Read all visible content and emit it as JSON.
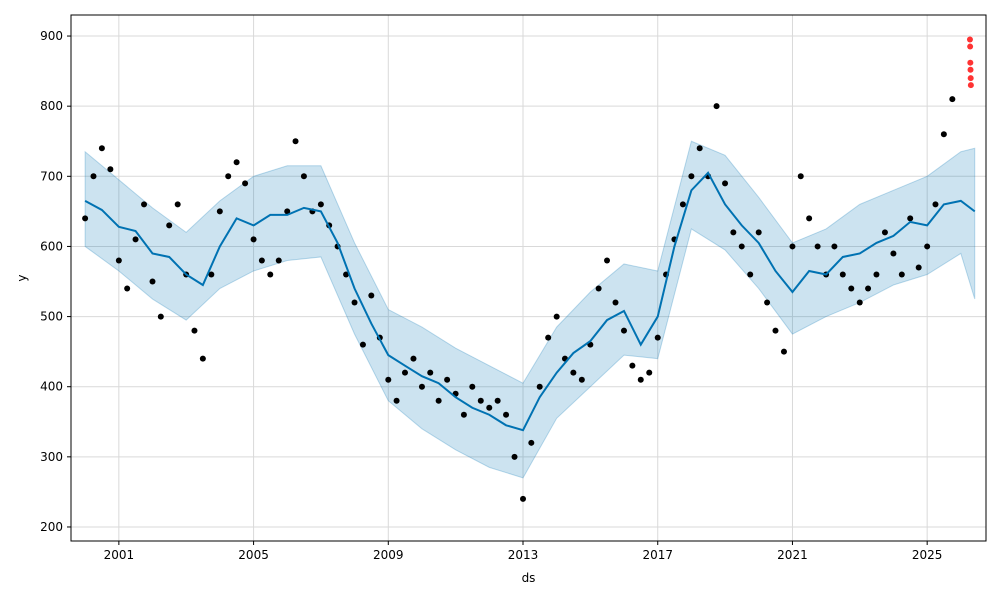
{
  "chart_data": {
    "type": "scatter",
    "xlabel": "ds",
    "ylabel": "y",
    "xlim": [
      "1999-08-01",
      "2026-10-01"
    ],
    "ylim": [
      180,
      930
    ],
    "grid": true,
    "x_ticks": [
      {
        "label": "2001",
        "date": "2001-01-01"
      },
      {
        "label": "2005",
        "date": "2005-01-01"
      },
      {
        "label": "2009",
        "date": "2009-01-01"
      },
      {
        "label": "2013",
        "date": "2013-01-01"
      },
      {
        "label": "2017",
        "date": "2017-01-01"
      },
      {
        "label": "2021",
        "date": "2021-01-01"
      },
      {
        "label": "2025",
        "date": "2025-01-01"
      }
    ],
    "y_ticks": [
      200,
      300,
      400,
      500,
      600,
      700,
      800,
      900
    ],
    "colors": {
      "observed": "#000000",
      "anomaly": "#ff0000",
      "trend": "#0072b2",
      "band": "#0072b2",
      "grid": "#d9d9d9"
    },
    "series": [
      {
        "role": "forecast",
        "style": "line",
        "points": [
          [
            "2000-01-01",
            665
          ],
          [
            "2000-07-01",
            652
          ],
          [
            "2001-01-01",
            628
          ],
          [
            "2001-07-01",
            622
          ],
          [
            "2002-01-01",
            590
          ],
          [
            "2002-07-01",
            585
          ],
          [
            "2003-01-01",
            560
          ],
          [
            "2003-07-01",
            545
          ],
          [
            "2004-01-01",
            600
          ],
          [
            "2004-07-01",
            640
          ],
          [
            "2005-01-01",
            630
          ],
          [
            "2005-07-01",
            645
          ],
          [
            "2006-01-01",
            645
          ],
          [
            "2006-07-01",
            655
          ],
          [
            "2007-01-01",
            650
          ],
          [
            "2007-07-01",
            605
          ],
          [
            "2008-01-01",
            540
          ],
          [
            "2008-07-01",
            490
          ],
          [
            "2009-01-01",
            445
          ],
          [
            "2009-07-01",
            430
          ],
          [
            "2010-01-01",
            415
          ],
          [
            "2010-07-01",
            405
          ],
          [
            "2011-01-01",
            385
          ],
          [
            "2011-07-01",
            370
          ],
          [
            "2012-01-01",
            360
          ],
          [
            "2012-07-01",
            345
          ],
          [
            "2013-01-01",
            338
          ],
          [
            "2013-07-01",
            385
          ],
          [
            "2014-01-01",
            420
          ],
          [
            "2014-07-01",
            448
          ],
          [
            "2015-01-01",
            465
          ],
          [
            "2015-07-01",
            495
          ],
          [
            "2016-01-01",
            508
          ],
          [
            "2016-07-01",
            460
          ],
          [
            "2017-01-01",
            500
          ],
          [
            "2017-07-01",
            600
          ],
          [
            "2018-01-01",
            680
          ],
          [
            "2018-07-01",
            705
          ],
          [
            "2019-01-01",
            660
          ],
          [
            "2019-07-01",
            630
          ],
          [
            "2020-01-01",
            605
          ],
          [
            "2020-07-01",
            565
          ],
          [
            "2021-01-01",
            535
          ],
          [
            "2021-07-01",
            565
          ],
          [
            "2022-01-01",
            560
          ],
          [
            "2022-07-01",
            585
          ],
          [
            "2023-01-01",
            590
          ],
          [
            "2023-07-01",
            605
          ],
          [
            "2024-01-01",
            615
          ],
          [
            "2024-07-01",
            635
          ],
          [
            "2025-01-01",
            630
          ],
          [
            "2025-07-01",
            660
          ],
          [
            "2026-01-01",
            665
          ],
          [
            "2026-06-01",
            650
          ]
        ]
      },
      {
        "role": "uncertainty",
        "style": "band",
        "lower": [
          [
            "2000-01-01",
            600
          ],
          [
            "2001-01-01",
            565
          ],
          [
            "2002-01-01",
            525
          ],
          [
            "2003-01-01",
            495
          ],
          [
            "2004-01-01",
            540
          ],
          [
            "2005-01-01",
            565
          ],
          [
            "2006-01-01",
            580
          ],
          [
            "2007-01-01",
            585
          ],
          [
            "2008-01-01",
            475
          ],
          [
            "2009-01-01",
            380
          ],
          [
            "2010-01-01",
            340
          ],
          [
            "2011-01-01",
            310
          ],
          [
            "2012-01-01",
            285
          ],
          [
            "2013-01-01",
            270
          ],
          [
            "2014-01-01",
            355
          ],
          [
            "2015-01-01",
            400
          ],
          [
            "2016-01-01",
            445
          ],
          [
            "2017-01-01",
            440
          ],
          [
            "2018-01-01",
            625
          ],
          [
            "2019-01-01",
            595
          ],
          [
            "2020-01-01",
            540
          ],
          [
            "2021-01-01",
            475
          ],
          [
            "2022-01-01",
            500
          ],
          [
            "2023-01-01",
            520
          ],
          [
            "2024-01-01",
            545
          ],
          [
            "2025-01-01",
            560
          ],
          [
            "2026-01-01",
            590
          ],
          [
            "2026-06-01",
            525
          ]
        ],
        "upper": [
          [
            "2000-01-01",
            735
          ],
          [
            "2001-01-01",
            695
          ],
          [
            "2002-01-01",
            655
          ],
          [
            "2003-01-01",
            620
          ],
          [
            "2004-01-01",
            665
          ],
          [
            "2005-01-01",
            700
          ],
          [
            "2006-01-01",
            715
          ],
          [
            "2007-01-01",
            715
          ],
          [
            "2008-01-01",
            605
          ],
          [
            "2009-01-01",
            510
          ],
          [
            "2010-01-01",
            485
          ],
          [
            "2011-01-01",
            455
          ],
          [
            "2012-01-01",
            430
          ],
          [
            "2013-01-01",
            405
          ],
          [
            "2014-01-01",
            485
          ],
          [
            "2015-01-01",
            535
          ],
          [
            "2016-01-01",
            575
          ],
          [
            "2017-01-01",
            565
          ],
          [
            "2018-01-01",
            750
          ],
          [
            "2019-01-01",
            730
          ],
          [
            "2020-01-01",
            670
          ],
          [
            "2021-01-01",
            605
          ],
          [
            "2022-01-01",
            625
          ],
          [
            "2023-01-01",
            660
          ],
          [
            "2024-01-01",
            680
          ],
          [
            "2025-01-01",
            700
          ],
          [
            "2026-01-01",
            735
          ],
          [
            "2026-06-01",
            740
          ]
        ]
      },
      {
        "role": "observed",
        "style": "markers",
        "points": [
          [
            "2000-01-01",
            640
          ],
          [
            "2000-04-01",
            700
          ],
          [
            "2000-07-01",
            740
          ],
          [
            "2000-10-01",
            710
          ],
          [
            "2001-01-01",
            580
          ],
          [
            "2001-04-01",
            540
          ],
          [
            "2001-07-01",
            610
          ],
          [
            "2001-10-01",
            660
          ],
          [
            "2002-01-01",
            550
          ],
          [
            "2002-04-01",
            500
          ],
          [
            "2002-07-01",
            630
          ],
          [
            "2002-10-01",
            660
          ],
          [
            "2003-01-01",
            560
          ],
          [
            "2003-04-01",
            480
          ],
          [
            "2003-07-01",
            440
          ],
          [
            "2003-10-01",
            560
          ],
          [
            "2004-01-01",
            650
          ],
          [
            "2004-04-01",
            700
          ],
          [
            "2004-07-01",
            720
          ],
          [
            "2004-10-01",
            690
          ],
          [
            "2005-01-01",
            610
          ],
          [
            "2005-04-01",
            580
          ],
          [
            "2005-07-01",
            560
          ],
          [
            "2005-10-01",
            580
          ],
          [
            "2006-01-01",
            650
          ],
          [
            "2006-04-01",
            750
          ],
          [
            "2006-07-01",
            700
          ],
          [
            "2006-10-01",
            650
          ],
          [
            "2007-01-01",
            660
          ],
          [
            "2007-04-01",
            630
          ],
          [
            "2007-07-01",
            600
          ],
          [
            "2007-10-01",
            560
          ],
          [
            "2008-01-01",
            520
          ],
          [
            "2008-04-01",
            460
          ],
          [
            "2008-07-01",
            530
          ],
          [
            "2008-10-01",
            470
          ],
          [
            "2009-01-01",
            410
          ],
          [
            "2009-04-01",
            380
          ],
          [
            "2009-07-01",
            420
          ],
          [
            "2009-10-01",
            440
          ],
          [
            "2010-01-01",
            400
          ],
          [
            "2010-04-01",
            420
          ],
          [
            "2010-07-01",
            380
          ],
          [
            "2010-10-01",
            410
          ],
          [
            "2011-01-01",
            390
          ],
          [
            "2011-04-01",
            360
          ],
          [
            "2011-07-01",
            400
          ],
          [
            "2011-10-01",
            380
          ],
          [
            "2012-01-01",
            370
          ],
          [
            "2012-04-01",
            380
          ],
          [
            "2012-07-01",
            360
          ],
          [
            "2012-10-01",
            300
          ],
          [
            "2013-01-01",
            240
          ],
          [
            "2013-04-01",
            320
          ],
          [
            "2013-07-01",
            400
          ],
          [
            "2013-10-01",
            470
          ],
          [
            "2014-01-01",
            500
          ],
          [
            "2014-04-01",
            440
          ],
          [
            "2014-07-01",
            420
          ],
          [
            "2014-10-01",
            410
          ],
          [
            "2015-01-01",
            460
          ],
          [
            "2015-04-01",
            540
          ],
          [
            "2015-07-01",
            580
          ],
          [
            "2015-10-01",
            520
          ],
          [
            "2016-01-01",
            480
          ],
          [
            "2016-04-01",
            430
          ],
          [
            "2016-07-01",
            410
          ],
          [
            "2016-10-01",
            420
          ],
          [
            "2017-01-01",
            470
          ],
          [
            "2017-04-01",
            560
          ],
          [
            "2017-07-01",
            610
          ],
          [
            "2017-10-01",
            660
          ],
          [
            "2018-01-01",
            700
          ],
          [
            "2018-04-01",
            740
          ],
          [
            "2018-07-01",
            700
          ],
          [
            "2018-10-01",
            800
          ],
          [
            "2019-01-01",
            690
          ],
          [
            "2019-04-01",
            620
          ],
          [
            "2019-07-01",
            600
          ],
          [
            "2019-10-01",
            560
          ],
          [
            "2020-01-01",
            620
          ],
          [
            "2020-04-01",
            520
          ],
          [
            "2020-07-01",
            480
          ],
          [
            "2020-10-01",
            450
          ],
          [
            "2021-01-01",
            600
          ],
          [
            "2021-04-01",
            700
          ],
          [
            "2021-07-01",
            640
          ],
          [
            "2021-10-01",
            600
          ],
          [
            "2022-01-01",
            560
          ],
          [
            "2022-04-01",
            600
          ],
          [
            "2022-07-01",
            560
          ],
          [
            "2022-10-01",
            540
          ],
          [
            "2023-01-01",
            520
          ],
          [
            "2023-04-01",
            540
          ],
          [
            "2023-07-01",
            560
          ],
          [
            "2023-10-01",
            620
          ],
          [
            "2024-01-01",
            590
          ],
          [
            "2024-04-01",
            560
          ],
          [
            "2024-07-01",
            640
          ],
          [
            "2024-10-01",
            570
          ],
          [
            "2025-01-01",
            600
          ],
          [
            "2025-04-01",
            660
          ],
          [
            "2025-07-01",
            760
          ],
          [
            "2025-10-01",
            810
          ]
        ]
      },
      {
        "role": "anomaly",
        "style": "markers",
        "points": [
          [
            "2026-04-10",
            895
          ],
          [
            "2026-04-12",
            885
          ],
          [
            "2026-04-14",
            862
          ],
          [
            "2026-04-16",
            852
          ],
          [
            "2026-04-18",
            840
          ],
          [
            "2026-04-20",
            830
          ]
        ]
      }
    ]
  }
}
